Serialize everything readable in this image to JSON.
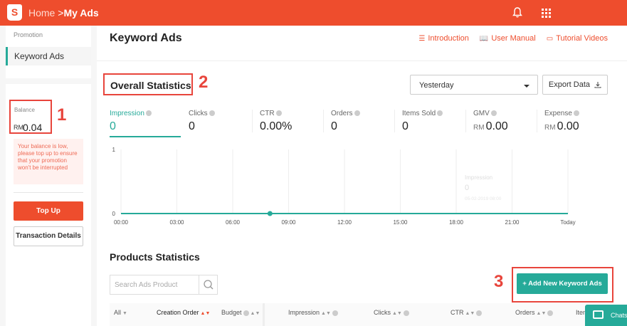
{
  "header": {
    "logo_letter": "S",
    "breadcrumb_home": "Home",
    "breadcrumb_sep": ">",
    "breadcrumb_current": "My Ads",
    "bell_icon": "bell-icon",
    "apps_icon": "grid-icon"
  },
  "sidebar": {
    "section_label": "Promotion",
    "menu_item": "Keyword Ads",
    "balance_label": "Balance",
    "balance_currency": "RM",
    "balance_value": "0.04",
    "warning": "Your balance is low, please top up to ensure that your promotion won't be interrupted",
    "topup_label": "Top Up",
    "transaction_label": "Transaction Details"
  },
  "annotations": {
    "one": "1",
    "two": "2",
    "three": "3"
  },
  "main": {
    "title": "Keyword Ads",
    "links": [
      {
        "label": "Introduction",
        "icon": "list-icon"
      },
      {
        "label": "User Manual",
        "icon": "book-icon"
      },
      {
        "label": "Tutorial Videos",
        "icon": "video-icon"
      }
    ],
    "overall_title": "Overall Statistics",
    "date_select": "Yesterday",
    "export_label": "Export Data"
  },
  "metrics": [
    {
      "label": "Impression",
      "value": "0",
      "currency": ""
    },
    {
      "label": "Clicks",
      "value": "0",
      "currency": ""
    },
    {
      "label": "CTR",
      "value": "0.00%",
      "currency": ""
    },
    {
      "label": "Orders",
      "value": "0",
      "currency": ""
    },
    {
      "label": "Items Sold",
      "value": "0",
      "currency": ""
    },
    {
      "label": "GMV",
      "value": "0.00",
      "currency": "RM"
    },
    {
      "label": "Expense",
      "value": "0.00",
      "currency": "RM"
    }
  ],
  "chart_data": {
    "type": "line",
    "x": [
      "00:00",
      "03:00",
      "06:00",
      "09:00",
      "12:00",
      "15:00",
      "18:00",
      "21:00",
      "Today"
    ],
    "series": [
      {
        "name": "Impression",
        "values": [
          0,
          0,
          0,
          0,
          0,
          0,
          0,
          0,
          0
        ]
      }
    ],
    "y_ticks": [
      "1",
      "0"
    ],
    "ylim": [
      0,
      1
    ],
    "grid": true,
    "marker_index_hours": 8,
    "tooltip": {
      "label": "Impression",
      "value": "0",
      "time": "05-02-2019 08:00"
    },
    "color": "#26aa99"
  },
  "products": {
    "title": "Products Statistics",
    "search_placeholder": "Search Ads Product",
    "add_button": "+ Add New Keyword Ads",
    "columns": [
      "All",
      "Creation Order",
      "Budget",
      "Impression",
      "Clicks",
      "CTR",
      "Orders",
      "Item"
    ]
  },
  "chat": {
    "label": "Chats"
  }
}
